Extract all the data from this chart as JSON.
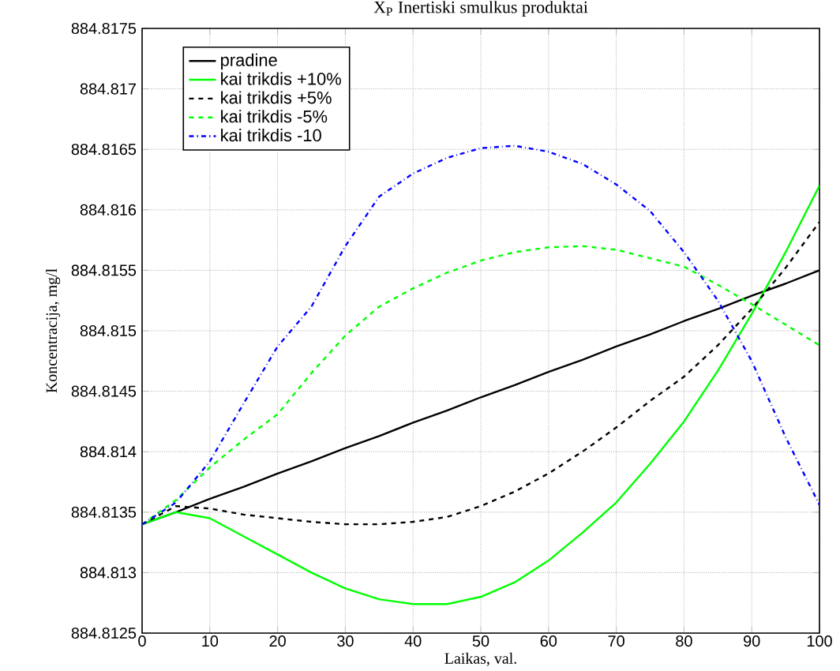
{
  "chart_data": {
    "type": "line",
    "title": "X$_{P}$ Inertiski smulkus produktai",
    "xlabel": "Laikas, val.",
    "ylabel": "Koncentracija, mg/l",
    "x": [
      0,
      5,
      10,
      15,
      20,
      25,
      30,
      35,
      40,
      45,
      50,
      55,
      60,
      65,
      70,
      75,
      80,
      85,
      90,
      95,
      100
    ],
    "series": [
      {
        "name": "pradine",
        "color": "#000000",
        "line_style": "solid",
        "values": [
          884.8134,
          884.8135,
          884.81361,
          884.81371,
          884.81382,
          884.81392,
          884.81403,
          884.81413,
          884.81424,
          884.81434,
          884.81445,
          884.81455,
          884.81466,
          884.81476,
          884.81487,
          884.81497,
          884.81508,
          884.81518,
          884.81529,
          884.81539,
          884.8155
        ]
      },
      {
        "name": "kai trikdis +10%",
        "color": "#00ff00",
        "line_style": "solid",
        "values": [
          884.8134,
          884.8135,
          884.81345,
          884.8133,
          884.81315,
          884.813,
          884.81287,
          884.81278,
          884.81274,
          884.81274,
          884.8128,
          884.81292,
          884.8131,
          884.81333,
          884.81358,
          884.8139,
          884.81425,
          884.81467,
          884.81514,
          884.81565,
          884.8162
        ]
      },
      {
        "name": "kai trikdis +5%",
        "color": "#000000",
        "line_style": "dashed",
        "values": [
          884.8134,
          884.81355,
          884.81353,
          884.81348,
          884.81345,
          884.81342,
          884.8134,
          884.8134,
          884.81342,
          884.81346,
          884.81355,
          884.81367,
          884.81382,
          884.814,
          884.8142,
          884.81442,
          884.81462,
          884.81488,
          884.81518,
          884.81552,
          884.8159
        ]
      },
      {
        "name": "kai trikdis -5%",
        "color": "#00ff00",
        "line_style": "dashed",
        "values": [
          884.8134,
          884.8136,
          884.81387,
          884.8141,
          884.81431,
          884.81465,
          884.81496,
          884.8152,
          884.81535,
          884.81548,
          884.81558,
          884.81565,
          884.81569,
          884.8157,
          884.81567,
          884.8156,
          884.81553,
          884.81538,
          884.81522,
          884.81505,
          884.81488
        ]
      },
      {
        "name": "kai trikdis -10",
        "color": "#0000ff",
        "line_style": "dashdot",
        "values": [
          884.8134,
          884.81358,
          884.81392,
          884.8144,
          884.81487,
          884.8152,
          884.8157,
          884.81611,
          884.8163,
          884.81643,
          884.81651,
          884.81653,
          884.81648,
          884.81638,
          884.81621,
          884.81599,
          884.81565,
          884.81525,
          884.81475,
          884.81412,
          884.81356
        ]
      }
    ],
    "xlim": [
      0,
      100
    ],
    "ylim": [
      884.8125,
      884.8175
    ],
    "xticks": [
      0,
      10,
      20,
      30,
      40,
      50,
      60,
      70,
      80,
      90,
      100
    ],
    "yticks": [
      884.8125,
      884.813,
      884.8135,
      884.814,
      884.8145,
      884.815,
      884.8155,
      884.816,
      884.8165,
      884.817,
      884.8175
    ],
    "grid": true,
    "legend": "top left",
    "marker": "none"
  }
}
